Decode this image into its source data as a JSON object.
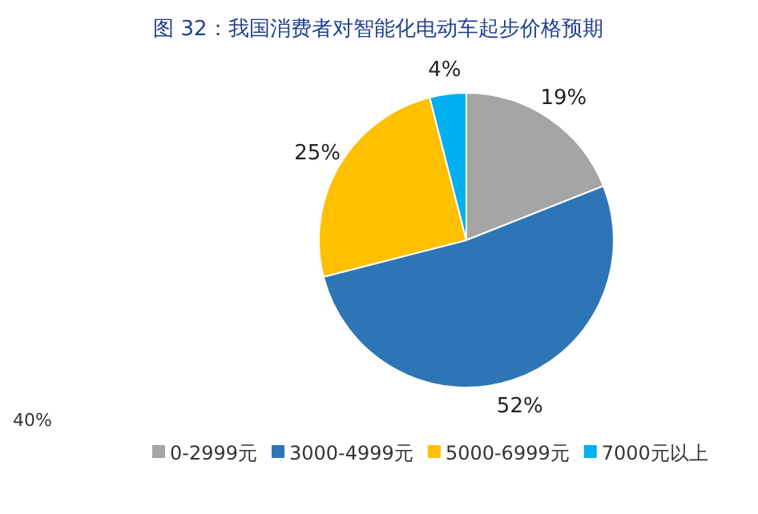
{
  "chart_data": {
    "type": "pie",
    "title": "图 32：我国消费者对智能化电动车起步价格预期",
    "categories": [
      "0-2999元",
      "3000-4999元",
      "5000-6999元",
      "7000元以上"
    ],
    "values": [
      19,
      52,
      25,
      4
    ],
    "colors": [
      "#a5a5a5",
      "#2e75b6",
      "#ffc000",
      "#00b0f0"
    ],
    "value_labels": [
      "19%",
      "52%",
      "25%",
      "4%"
    ],
    "legend": "bottom",
    "annotations": [
      "40%"
    ]
  }
}
